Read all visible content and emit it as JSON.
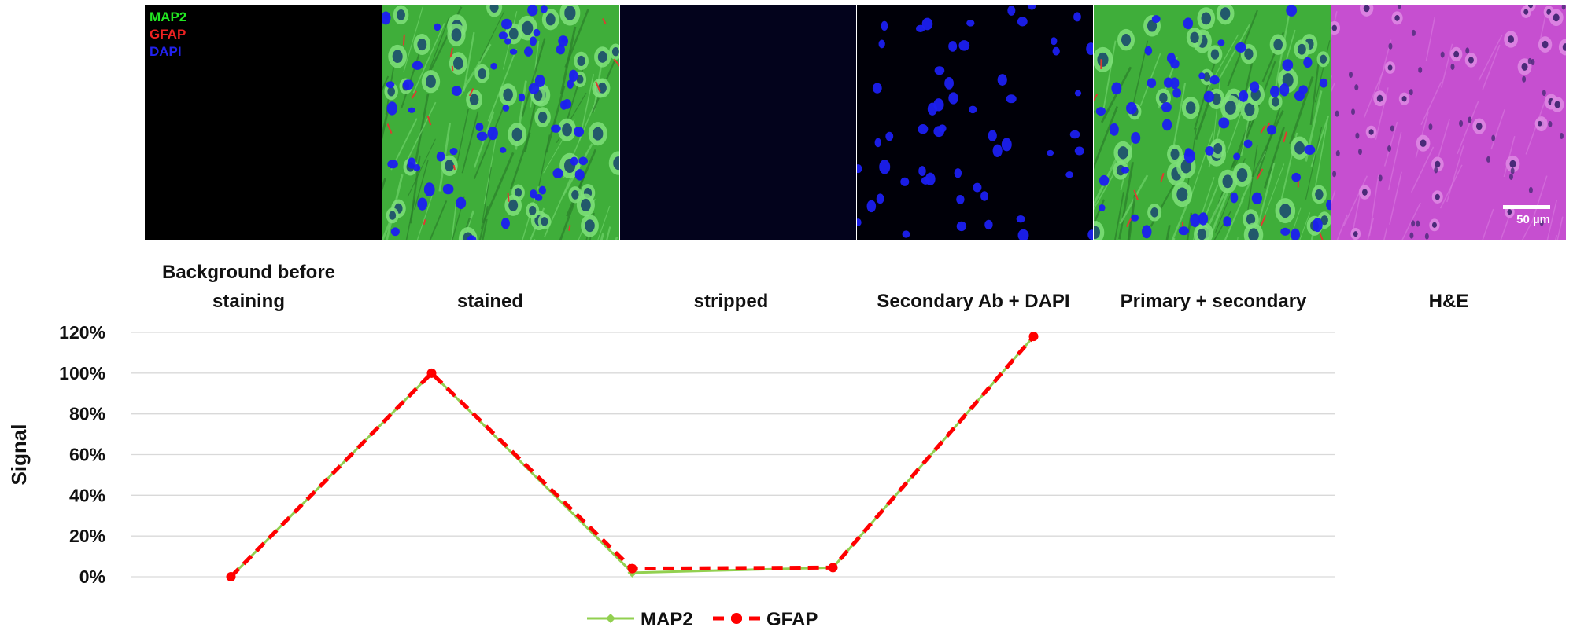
{
  "panels": {
    "channel_labels": [
      {
        "text": "MAP2",
        "color": "#22e822"
      },
      {
        "text": "GFAP",
        "color": "#ee2222"
      },
      {
        "text": "DAPI",
        "color": "#2222ee"
      }
    ],
    "scale_bar_label": "50 µm",
    "he_label": "H&E",
    "colors": {
      "background": "#000000",
      "stripped": "#03031c",
      "neuron_green": "#3fae3a",
      "nucleus_blue": "#1b1ff0",
      "he_pink": "#c64fd0",
      "he_nucleus": "#4a2a78"
    }
  },
  "chart_data": {
    "type": "line",
    "categories": [
      "Background before staining",
      "stained",
      "stripped",
      "Secondary Ab + DAPI",
      "Primary + secondary"
    ],
    "series": [
      {
        "name": "MAP2",
        "values": [
          0,
          100,
          2,
          4.5,
          118
        ],
        "color": "#92d050",
        "style": "solid"
      },
      {
        "name": "GFAP",
        "values": [
          0,
          100,
          4,
          4.5,
          118
        ],
        "color": "#ff0000",
        "style": "dashed"
      }
    ],
    "ylabel": "Signal",
    "ylim": [
      0,
      120
    ],
    "yticks": [
      "0%",
      "20%",
      "40%",
      "60%",
      "80%",
      "100%",
      "120%"
    ],
    "grid": true,
    "legend": "bottom"
  }
}
